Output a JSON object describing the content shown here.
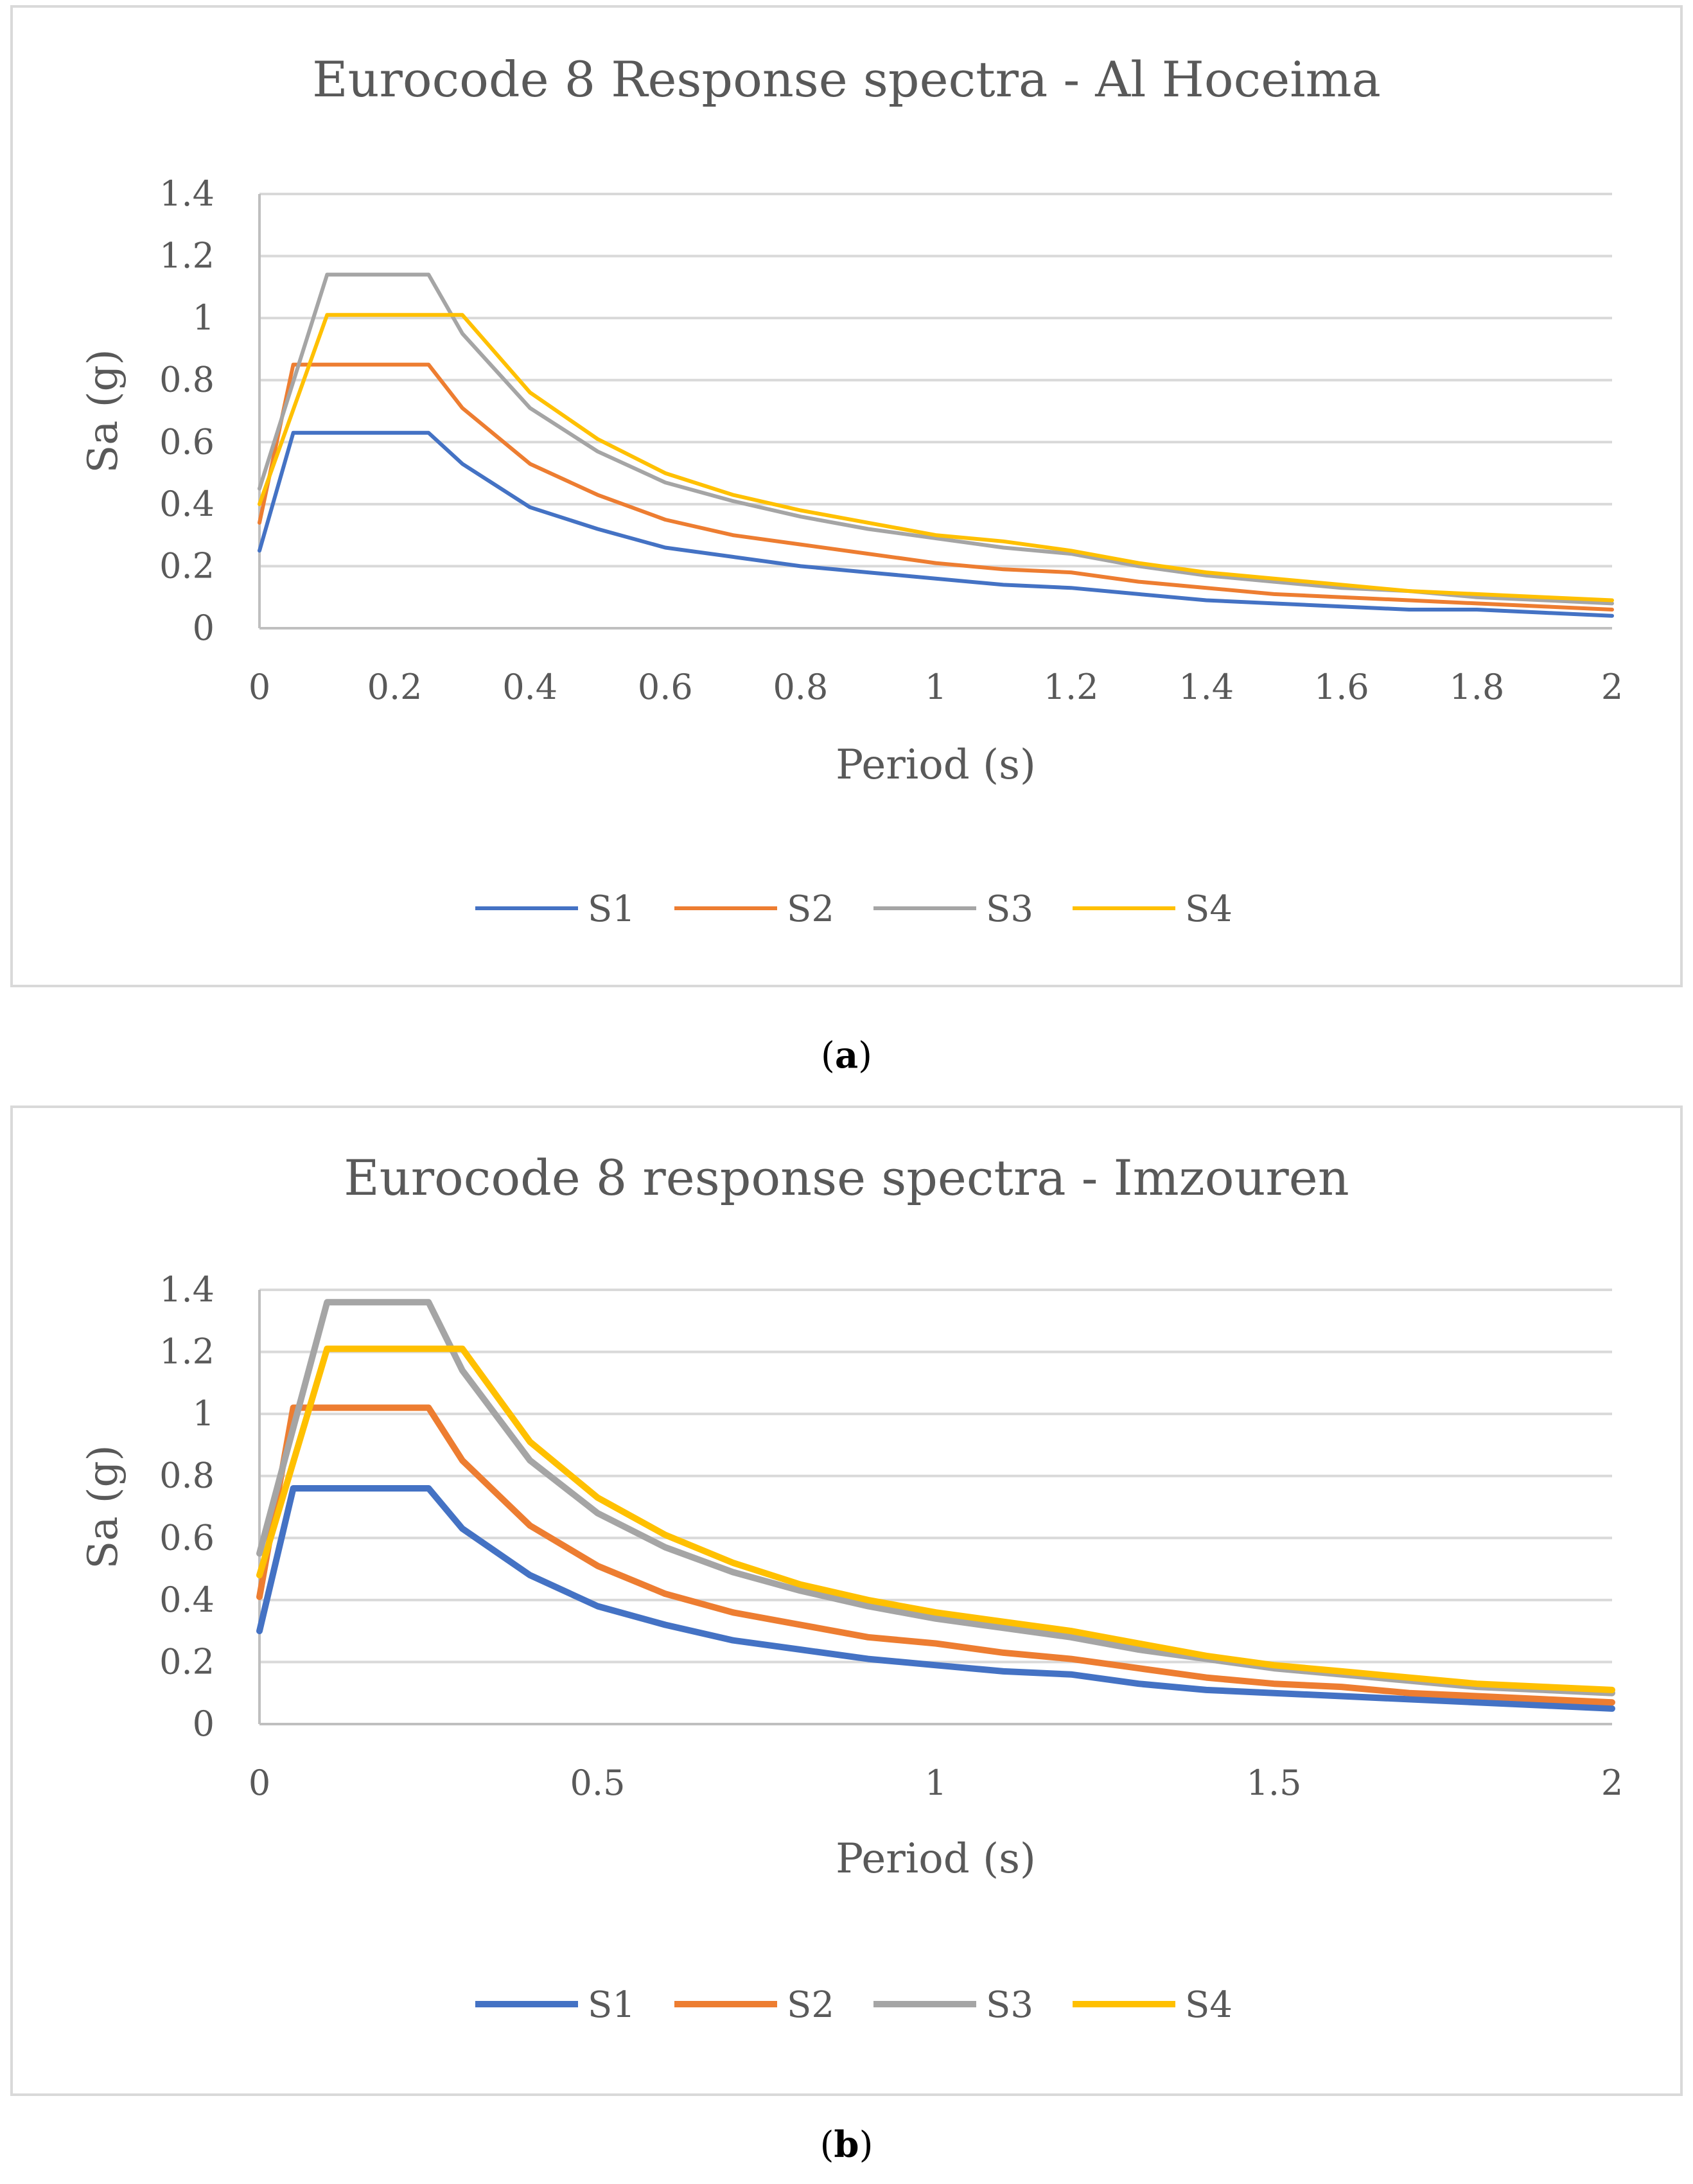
{
  "figure_title": "Eurocode 8 response spectra figure",
  "chart_data": [
    {
      "panel_label": "a",
      "type": "line",
      "title": "Eurocode 8 Response spectra - Al Hoceima",
      "xlabel": "Period (s)",
      "ylabel": "Sa (g)",
      "xlim": [
        0,
        2
      ],
      "ylim": [
        0,
        1.4
      ],
      "x_ticks": [
        "0",
        "0.2",
        "0.4",
        "0.6",
        "0.8",
        "1",
        "1.2",
        "1.4",
        "1.6",
        "1.8",
        "2"
      ],
      "y_ticks": [
        "0",
        "0.2",
        "0.4",
        "0.6",
        "0.8",
        "1",
        "1.2",
        "1.4"
      ],
      "legend_position": "bottom",
      "series": [
        {
          "name": "S1",
          "color": "#4472c4",
          "x": [
            0,
            0.05,
            0.25,
            0.3,
            0.4,
            0.5,
            0.6,
            0.7,
            0.8,
            0.9,
            1.0,
            1.1,
            1.2,
            1.3,
            1.4,
            1.5,
            1.6,
            1.7,
            1.8,
            1.9,
            2.0
          ],
          "y": [
            0.25,
            0.63,
            0.63,
            0.53,
            0.39,
            0.32,
            0.26,
            0.23,
            0.2,
            0.18,
            0.16,
            0.14,
            0.13,
            0.11,
            0.09,
            0.08,
            0.07,
            0.06,
            0.06,
            0.05,
            0.04
          ]
        },
        {
          "name": "S2",
          "color": "#ed7d31",
          "x": [
            0,
            0.05,
            0.25,
            0.3,
            0.4,
            0.5,
            0.6,
            0.7,
            0.8,
            0.9,
            1.0,
            1.1,
            1.2,
            1.3,
            1.4,
            1.5,
            1.6,
            1.7,
            1.8,
            1.9,
            2.0
          ],
          "y": [
            0.34,
            0.85,
            0.85,
            0.71,
            0.53,
            0.43,
            0.35,
            0.3,
            0.27,
            0.24,
            0.21,
            0.19,
            0.18,
            0.15,
            0.13,
            0.11,
            0.1,
            0.09,
            0.08,
            0.07,
            0.06
          ]
        },
        {
          "name": "S3",
          "color": "#a5a5a5",
          "x": [
            0,
            0.1,
            0.25,
            0.3,
            0.4,
            0.5,
            0.6,
            0.7,
            0.8,
            0.9,
            1.0,
            1.1,
            1.2,
            1.3,
            1.4,
            1.5,
            1.6,
            1.7,
            1.8,
            1.9,
            2.0
          ],
          "y": [
            0.45,
            1.14,
            1.14,
            0.95,
            0.71,
            0.57,
            0.47,
            0.41,
            0.36,
            0.32,
            0.29,
            0.26,
            0.24,
            0.2,
            0.17,
            0.15,
            0.13,
            0.12,
            0.1,
            0.09,
            0.08
          ]
        },
        {
          "name": "S4",
          "color": "#ffc000",
          "x": [
            0,
            0.1,
            0.3,
            0.4,
            0.5,
            0.6,
            0.7,
            0.8,
            0.9,
            1.0,
            1.1,
            1.2,
            1.3,
            1.4,
            1.5,
            1.6,
            1.7,
            1.8,
            1.9,
            2.0
          ],
          "y": [
            0.4,
            1.01,
            1.01,
            0.76,
            0.61,
            0.5,
            0.43,
            0.38,
            0.34,
            0.3,
            0.28,
            0.25,
            0.21,
            0.18,
            0.16,
            0.14,
            0.12,
            0.11,
            0.1,
            0.09
          ]
        }
      ]
    },
    {
      "panel_label": "b",
      "type": "line",
      "title": "Eurocode 8 response spectra - Imzouren",
      "xlabel": "Period (s)",
      "ylabel": "Sa (g)",
      "xlim": [
        0,
        2
      ],
      "ylim": [
        0,
        1.4
      ],
      "x_ticks": [
        "0",
        "0.5",
        "1",
        "1.5",
        "2"
      ],
      "y_ticks": [
        "0",
        "0.2",
        "0.4",
        "0.6",
        "0.8",
        "1",
        "1.2",
        "1.4"
      ],
      "legend_position": "bottom",
      "series": [
        {
          "name": "S1",
          "color": "#4472c4",
          "x": [
            0,
            0.05,
            0.25,
            0.3,
            0.4,
            0.5,
            0.6,
            0.7,
            0.8,
            0.9,
            1.0,
            1.1,
            1.2,
            1.3,
            1.4,
            1.5,
            1.6,
            1.7,
            1.8,
            1.9,
            2.0
          ],
          "y": [
            0.3,
            0.76,
            0.76,
            0.63,
            0.48,
            0.38,
            0.32,
            0.27,
            0.24,
            0.21,
            0.19,
            0.17,
            0.16,
            0.13,
            0.11,
            0.1,
            0.09,
            0.08,
            0.07,
            0.06,
            0.05
          ]
        },
        {
          "name": "S2",
          "color": "#ed7d31",
          "x": [
            0,
            0.05,
            0.25,
            0.3,
            0.4,
            0.5,
            0.6,
            0.7,
            0.8,
            0.9,
            1.0,
            1.1,
            1.2,
            1.3,
            1.4,
            1.5,
            1.6,
            1.7,
            1.8,
            1.9,
            2.0
          ],
          "y": [
            0.41,
            1.02,
            1.02,
            0.85,
            0.64,
            0.51,
            0.42,
            0.36,
            0.32,
            0.28,
            0.26,
            0.23,
            0.21,
            0.18,
            0.15,
            0.13,
            0.12,
            0.1,
            0.09,
            0.08,
            0.07
          ]
        },
        {
          "name": "S3",
          "color": "#a5a5a5",
          "x": [
            0,
            0.1,
            0.25,
            0.3,
            0.4,
            0.5,
            0.6,
            0.7,
            0.8,
            0.9,
            1.0,
            1.1,
            1.2,
            1.3,
            1.4,
            1.5,
            1.6,
            1.7,
            1.8,
            1.9,
            2.0
          ],
          "y": [
            0.55,
            1.36,
            1.36,
            1.14,
            0.85,
            0.68,
            0.57,
            0.49,
            0.43,
            0.38,
            0.34,
            0.31,
            0.28,
            0.24,
            0.21,
            0.18,
            0.16,
            0.14,
            0.12,
            0.11,
            0.1
          ]
        },
        {
          "name": "S4",
          "color": "#ffc000",
          "x": [
            0,
            0.1,
            0.3,
            0.4,
            0.5,
            0.6,
            0.7,
            0.8,
            0.9,
            1.0,
            1.1,
            1.2,
            1.3,
            1.4,
            1.5,
            1.6,
            1.7,
            1.8,
            1.9,
            2.0
          ],
          "y": [
            0.48,
            1.21,
            1.21,
            0.91,
            0.73,
            0.61,
            0.52,
            0.45,
            0.4,
            0.36,
            0.33,
            0.3,
            0.26,
            0.22,
            0.19,
            0.17,
            0.15,
            0.13,
            0.12,
            0.11
          ]
        }
      ]
    }
  ]
}
